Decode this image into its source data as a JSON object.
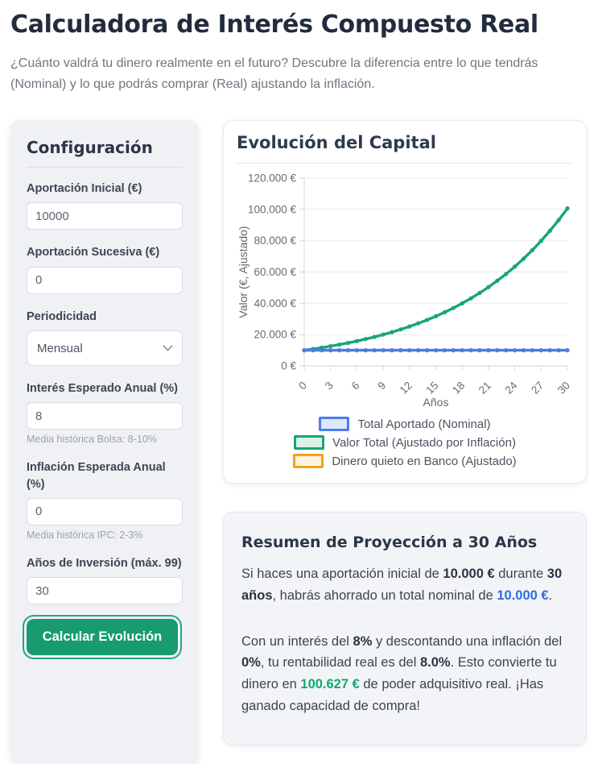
{
  "header": {
    "title": "Calculadora de Interés Compuesto Real",
    "subtitle": "¿Cuánto valdrá tu dinero realmente en el futuro? Descubre la diferencia entre lo que tendrás (Nominal) y lo que podrás comprar (Real) ajustando la inflación."
  },
  "config": {
    "title": "Configuración",
    "fields": [
      {
        "id": "initial-contribution",
        "label": "Aportación Inicial (€)",
        "type": "input",
        "value": "10000"
      },
      {
        "id": "recurring-contribution",
        "label": "Aportación Sucesiva (€)",
        "type": "input",
        "value": "0"
      },
      {
        "id": "periodicity",
        "label": "Periodicidad",
        "type": "select",
        "value": "Mensual"
      },
      {
        "id": "expected-interest",
        "label": "Interés Esperado Anual (%)",
        "type": "input",
        "value": "8",
        "hint": "Media histórica Bolsa: 8-10%"
      },
      {
        "id": "expected-inflation",
        "label": "Inflación Esperada Anual (%)",
        "type": "input",
        "value": "0",
        "hint": "Media histórica IPC: 2-3%"
      },
      {
        "id": "investment-years",
        "label": "Años de Inversión (máx. 99)",
        "type": "input",
        "value": "30"
      }
    ],
    "submit_label": "Calcular Evolución"
  },
  "chart": {
    "title": "Evolución del Capital"
  },
  "chart_data": {
    "type": "line",
    "title": "Evolución del Capital",
    "xlabel": "Años",
    "ylabel": "Valor (€, Ajustado)",
    "ylim": [
      0,
      120000
    ],
    "ytick_step": 20000,
    "ytick_format": "thousands-dot-euro",
    "xticks": [
      0,
      3,
      6,
      9,
      12,
      15,
      18,
      21,
      24,
      27,
      30
    ],
    "grid": true,
    "legend_position": "bottom",
    "x": [
      0,
      1,
      2,
      3,
      4,
      5,
      6,
      7,
      8,
      9,
      10,
      11,
      12,
      13,
      14,
      15,
      16,
      17,
      18,
      19,
      20,
      21,
      22,
      23,
      24,
      25,
      26,
      27,
      28,
      29,
      30
    ],
    "series": [
      {
        "name": "Total Aportado (Nominal)",
        "color": "#4b7cec",
        "fill": "#dce8fb",
        "values": [
          10000,
          10000,
          10000,
          10000,
          10000,
          10000,
          10000,
          10000,
          10000,
          10000,
          10000,
          10000,
          10000,
          10000,
          10000,
          10000,
          10000,
          10000,
          10000,
          10000,
          10000,
          10000,
          10000,
          10000,
          10000,
          10000,
          10000,
          10000,
          10000,
          10000,
          10000
        ]
      },
      {
        "name": "Valor Total (Ajustado por Inflación)",
        "color": "#17a673",
        "fill": "#d9f3e6",
        "values": [
          10000,
          10800,
          11664,
          12597,
          13605,
          14693,
          15869,
          17138,
          18509,
          19990,
          21589,
          23316,
          25182,
          27196,
          29372,
          31722,
          34259,
          37000,
          39960,
          43157,
          46610,
          50338,
          54365,
          58715,
          63412,
          68485,
          73964,
          79881,
          86271,
          93173,
          100627
        ]
      },
      {
        "name": "Dinero quieto en Banco (Ajustado)",
        "color": "#f2a313",
        "fill": "#fdf3e0",
        "values": [
          10000,
          10000,
          10000,
          10000,
          10000,
          10000,
          10000,
          10000,
          10000,
          10000,
          10000,
          10000,
          10000,
          10000,
          10000,
          10000,
          10000,
          10000,
          10000,
          10000,
          10000,
          10000,
          10000,
          10000,
          10000,
          10000,
          10000,
          10000,
          10000,
          10000,
          10000
        ]
      }
    ]
  },
  "summary": {
    "title": "Resumen de Proyección a 30 Años",
    "value_colors": {
      "blue": "#2f6ce5",
      "green": "#0fa96e"
    },
    "paragraphs": [
      [
        {
          "t": "Si haces una aportación inicial de "
        },
        {
          "t": "10.000 €",
          "b": true
        },
        {
          "t": " durante "
        },
        {
          "t": "30 años",
          "b": true
        },
        {
          "t": ", habrás ahorrado un total nominal de "
        },
        {
          "t": "10.000 €",
          "b": true,
          "c": "blue"
        },
        {
          "t": "."
        }
      ],
      [
        {
          "t": "Con un interés del "
        },
        {
          "t": "8%",
          "b": true
        },
        {
          "t": " y descontando una inflación del "
        },
        {
          "t": "0%",
          "b": true
        },
        {
          "t": ", tu rentabilidad real es del "
        },
        {
          "t": "8.0%",
          "b": true
        },
        {
          "t": ". Esto convierte tu dinero en "
        },
        {
          "t": "100.627 €",
          "b": true,
          "c": "green"
        },
        {
          "t": " de poder adquisitivo real. ¡Has ganado capacidad de compra!"
        }
      ]
    ]
  }
}
